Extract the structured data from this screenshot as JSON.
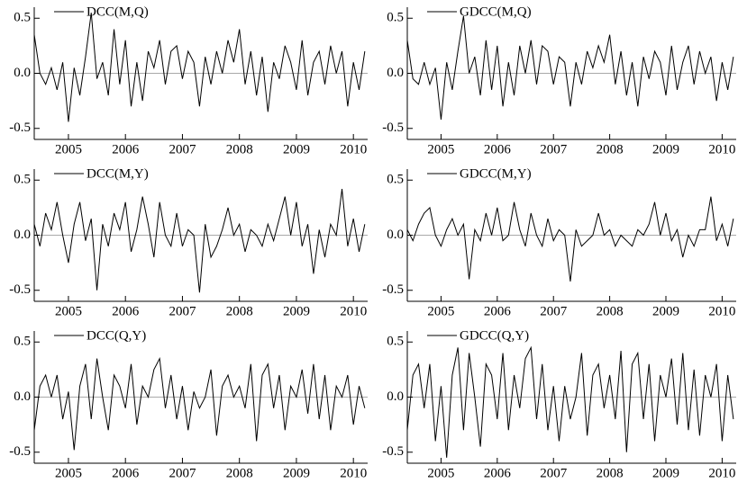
{
  "chart_data": [
    {
      "type": "line",
      "xlim": [
        2004.4,
        2010.25
      ],
      "ylim": [
        -0.6,
        0.6
      ],
      "xticks": [
        2005,
        2006,
        2007,
        2008,
        2009,
        2010
      ],
      "yticks": [
        0.5,
        {
          "value": 0,
          "label": "0.0"
        },
        -0.5
      ],
      "x": [
        2004.4,
        2004.5,
        2004.6,
        2004.7,
        2004.8,
        2004.9,
        2005,
        2005.1,
        2005.2,
        2005.3,
        2005.4,
        2005.5,
        2005.6,
        2005.7,
        2005.8,
        2005.9,
        2006,
        2006.1,
        2006.2,
        2006.3,
        2006.4,
        2006.5,
        2006.6,
        2006.7,
        2006.8,
        2006.9,
        2007,
        2007.1,
        2007.2,
        2007.3,
        2007.4,
        2007.5,
        2007.6,
        2007.7,
        2007.8,
        2007.9,
        2008,
        2008.1,
        2008.2,
        2008.3,
        2008.4,
        2008.5,
        2008.6,
        2008.7,
        2008.8,
        2008.9,
        2009,
        2009.1,
        2009.2,
        2009.3,
        2009.4,
        2009.5,
        2009.6,
        2009.7,
        2009.8,
        2009.9,
        2010,
        2010.1,
        2010.2
      ],
      "series": [
        {
          "name": "DCC(M,Q)",
          "color": "#000000",
          "values": [
            0.35,
            0.0,
            -0.1,
            0.05,
            -0.15,
            0.1,
            -0.44,
            0.05,
            -0.2,
            0.15,
            0.55,
            -0.05,
            0.1,
            -0.2,
            0.4,
            -0.1,
            0.3,
            -0.3,
            0.1,
            -0.25,
            0.2,
            0.05,
            0.3,
            -0.1,
            0.2,
            0.25,
            -0.05,
            0.2,
            0.1,
            -0.3,
            0.15,
            -0.1,
            0.2,
            0.0,
            0.3,
            0.1,
            0.4,
            -0.1,
            0.2,
            -0.2,
            0.15,
            -0.35,
            0.1,
            -0.05,
            0.25,
            0.1,
            -0.15,
            0.3,
            -0.2,
            0.1,
            0.2,
            -0.1,
            0.25,
            0.0,
            0.2,
            -0.3,
            0.1,
            -0.15,
            0.2
          ]
        }
      ]
    },
    {
      "type": "line",
      "xlim": [
        2004.4,
        2010.25
      ],
      "ylim": [
        -0.6,
        0.6
      ],
      "xticks": [
        2005,
        2006,
        2007,
        2008,
        2009,
        2010
      ],
      "yticks": [
        0.5,
        {
          "value": 0,
          "label": "0.0"
        },
        -0.5
      ],
      "x": [
        2004.4,
        2004.5,
        2004.6,
        2004.7,
        2004.8,
        2004.9,
        2005,
        2005.1,
        2005.2,
        2005.3,
        2005.4,
        2005.5,
        2005.6,
        2005.7,
        2005.8,
        2005.9,
        2006,
        2006.1,
        2006.2,
        2006.3,
        2006.4,
        2006.5,
        2006.6,
        2006.7,
        2006.8,
        2006.9,
        2007,
        2007.1,
        2007.2,
        2007.3,
        2007.4,
        2007.5,
        2007.6,
        2007.7,
        2007.8,
        2007.9,
        2008,
        2008.1,
        2008.2,
        2008.3,
        2008.4,
        2008.5,
        2008.6,
        2008.7,
        2008.8,
        2008.9,
        2009,
        2009.1,
        2009.2,
        2009.3,
        2009.4,
        2009.5,
        2009.6,
        2009.7,
        2009.8,
        2009.9,
        2010,
        2010.1,
        2010.2
      ],
      "series": [
        {
          "name": "GDCC(M,Q)",
          "color": "#000000",
          "values": [
            0.3,
            -0.05,
            -0.1,
            0.1,
            -0.1,
            0.05,
            -0.42,
            0.1,
            -0.15,
            0.2,
            0.52,
            0.0,
            0.15,
            -0.2,
            0.3,
            -0.15,
            0.25,
            -0.3,
            0.1,
            -0.2,
            0.25,
            0.0,
            0.3,
            -0.1,
            0.25,
            0.2,
            -0.1,
            0.15,
            0.1,
            -0.3,
            0.1,
            -0.1,
            0.2,
            0.05,
            0.25,
            0.1,
            0.35,
            -0.1,
            0.2,
            -0.2,
            0.1,
            -0.3,
            0.15,
            -0.05,
            0.2,
            0.1,
            -0.2,
            0.25,
            -0.15,
            0.1,
            0.25,
            -0.1,
            0.2,
            0.0,
            0.15,
            -0.25,
            0.1,
            -0.15,
            0.15
          ]
        }
      ]
    },
    {
      "type": "line",
      "xlim": [
        2004.4,
        2010.25
      ],
      "ylim": [
        -0.6,
        0.6
      ],
      "xticks": [
        2005,
        2006,
        2007,
        2008,
        2009,
        2010
      ],
      "yticks": [
        0.5,
        {
          "value": 0,
          "label": "0.0"
        },
        -0.5
      ],
      "x": [
        2004.4,
        2004.5,
        2004.6,
        2004.7,
        2004.8,
        2004.9,
        2005,
        2005.1,
        2005.2,
        2005.3,
        2005.4,
        2005.5,
        2005.6,
        2005.7,
        2005.8,
        2005.9,
        2006,
        2006.1,
        2006.2,
        2006.3,
        2006.4,
        2006.5,
        2006.6,
        2006.7,
        2006.8,
        2006.9,
        2007,
        2007.1,
        2007.2,
        2007.3,
        2007.4,
        2007.5,
        2007.6,
        2007.7,
        2007.8,
        2007.9,
        2008,
        2008.1,
        2008.2,
        2008.3,
        2008.4,
        2008.5,
        2008.6,
        2008.7,
        2008.8,
        2008.9,
        2009,
        2009.1,
        2009.2,
        2009.3,
        2009.4,
        2009.5,
        2009.6,
        2009.7,
        2009.8,
        2009.9,
        2010,
        2010.1,
        2010.2
      ],
      "series": [
        {
          "name": "DCC(M,Y)",
          "color": "#000000",
          "values": [
            0.1,
            -0.1,
            0.2,
            0.05,
            0.3,
            0.0,
            -0.25,
            0.1,
            0.3,
            -0.05,
            0.15,
            -0.5,
            0.1,
            -0.1,
            0.2,
            0.05,
            0.3,
            -0.15,
            0.05,
            0.35,
            0.1,
            -0.2,
            0.3,
            0.0,
            -0.1,
            0.2,
            -0.1,
            0.05,
            0.0,
            -0.52,
            0.1,
            -0.2,
            -0.1,
            0.05,
            0.25,
            0.0,
            0.1,
            -0.15,
            0.05,
            0.0,
            -0.1,
            0.1,
            -0.05,
            0.15,
            0.35,
            0.0,
            0.3,
            -0.1,
            0.1,
            -0.35,
            0.05,
            -0.2,
            0.1,
            0.0,
            0.42,
            -0.1,
            0.15,
            -0.15,
            0.1
          ]
        }
      ]
    },
    {
      "type": "line",
      "xlim": [
        2004.4,
        2010.25
      ],
      "ylim": [
        -0.6,
        0.6
      ],
      "xticks": [
        2005,
        2006,
        2007,
        2008,
        2009,
        2010
      ],
      "yticks": [
        0.5,
        {
          "value": 0,
          "label": "0.0"
        },
        -0.5
      ],
      "x": [
        2004.4,
        2004.5,
        2004.6,
        2004.7,
        2004.8,
        2004.9,
        2005,
        2005.1,
        2005.2,
        2005.3,
        2005.4,
        2005.5,
        2005.6,
        2005.7,
        2005.8,
        2005.9,
        2006,
        2006.1,
        2006.2,
        2006.3,
        2006.4,
        2006.5,
        2006.6,
        2006.7,
        2006.8,
        2006.9,
        2007,
        2007.1,
        2007.2,
        2007.3,
        2007.4,
        2007.5,
        2007.6,
        2007.7,
        2007.8,
        2007.9,
        2008,
        2008.1,
        2008.2,
        2008.3,
        2008.4,
        2008.5,
        2008.6,
        2008.7,
        2008.8,
        2008.9,
        2009,
        2009.1,
        2009.2,
        2009.3,
        2009.4,
        2009.5,
        2009.6,
        2009.7,
        2009.8,
        2009.9,
        2010,
        2010.1,
        2010.2
      ],
      "series": [
        {
          "name": "GDCC(M,Y)",
          "color": "#000000",
          "values": [
            0.05,
            -0.05,
            0.1,
            0.2,
            0.25,
            0.0,
            -0.1,
            0.05,
            0.15,
            0.0,
            0.1,
            -0.4,
            0.05,
            -0.05,
            0.2,
            0.0,
            0.25,
            -0.05,
            0.0,
            0.3,
            0.05,
            -0.1,
            0.2,
            0.0,
            -0.1,
            0.15,
            -0.05,
            0.05,
            0.0,
            -0.42,
            0.05,
            -0.1,
            -0.05,
            0.0,
            0.2,
            0.0,
            0.05,
            -0.1,
            0.0,
            -0.05,
            -0.1,
            0.05,
            0.0,
            0.1,
            0.3,
            0.0,
            0.2,
            -0.05,
            0.05,
            -0.2,
            0.0,
            -0.1,
            0.05,
            0.05,
            0.35,
            -0.05,
            0.1,
            -0.1,
            0.15
          ]
        }
      ]
    },
    {
      "type": "line",
      "xlim": [
        2004.4,
        2010.25
      ],
      "ylim": [
        -0.6,
        0.6
      ],
      "xticks": [
        2005,
        2006,
        2007,
        2008,
        2009,
        2010
      ],
      "yticks": [
        0.5,
        {
          "value": 0,
          "label": "0.0"
        },
        -0.5
      ],
      "x": [
        2004.4,
        2004.5,
        2004.6,
        2004.7,
        2004.8,
        2004.9,
        2005,
        2005.1,
        2005.2,
        2005.3,
        2005.4,
        2005.5,
        2005.6,
        2005.7,
        2005.8,
        2005.9,
        2006,
        2006.1,
        2006.2,
        2006.3,
        2006.4,
        2006.5,
        2006.6,
        2006.7,
        2006.8,
        2006.9,
        2007,
        2007.1,
        2007.2,
        2007.3,
        2007.4,
        2007.5,
        2007.6,
        2007.7,
        2007.8,
        2007.9,
        2008,
        2008.1,
        2008.2,
        2008.3,
        2008.4,
        2008.5,
        2008.6,
        2008.7,
        2008.8,
        2008.9,
        2009,
        2009.1,
        2009.2,
        2009.3,
        2009.4,
        2009.5,
        2009.6,
        2009.7,
        2009.8,
        2009.9,
        2010,
        2010.1,
        2010.2
      ],
      "series": [
        {
          "name": "DCC(Q,Y)",
          "color": "#000000",
          "values": [
            -0.3,
            0.1,
            0.2,
            0.0,
            0.2,
            -0.2,
            0.05,
            -0.48,
            0.1,
            0.3,
            -0.2,
            0.35,
            0.0,
            -0.3,
            0.2,
            0.1,
            -0.1,
            0.3,
            -0.25,
            0.1,
            0.0,
            0.25,
            0.35,
            -0.1,
            0.2,
            -0.2,
            0.1,
            -0.3,
            0.05,
            -0.1,
            0.0,
            0.25,
            -0.35,
            0.1,
            0.2,
            0.0,
            0.1,
            -0.1,
            0.3,
            -0.4,
            0.2,
            0.3,
            -0.1,
            0.2,
            -0.3,
            0.1,
            0.0,
            0.25,
            -0.15,
            0.3,
            -0.2,
            0.2,
            -0.3,
            0.1,
            0.0,
            0.2,
            -0.25,
            0.1,
            -0.1
          ]
        }
      ]
    },
    {
      "type": "line",
      "xlim": [
        2004.4,
        2010.25
      ],
      "ylim": [
        -0.6,
        0.6
      ],
      "xticks": [
        2005,
        2006,
        2007,
        2008,
        2009,
        2010
      ],
      "yticks": [
        0.5,
        {
          "value": 0,
          "label": "0.0"
        },
        -0.5
      ],
      "x": [
        2004.4,
        2004.5,
        2004.6,
        2004.7,
        2004.8,
        2004.9,
        2005,
        2005.1,
        2005.2,
        2005.3,
        2005.4,
        2005.5,
        2005.6,
        2005.7,
        2005.8,
        2005.9,
        2006,
        2006.1,
        2006.2,
        2006.3,
        2006.4,
        2006.5,
        2006.6,
        2006.7,
        2006.8,
        2006.9,
        2007,
        2007.1,
        2007.2,
        2007.3,
        2007.4,
        2007.5,
        2007.6,
        2007.7,
        2007.8,
        2007.9,
        2008,
        2008.1,
        2008.2,
        2008.3,
        2008.4,
        2008.5,
        2008.6,
        2008.7,
        2008.8,
        2008.9,
        2009,
        2009.1,
        2009.2,
        2009.3,
        2009.4,
        2009.5,
        2009.6,
        2009.7,
        2009.8,
        2009.9,
        2010,
        2010.1,
        2010.2
      ],
      "series": [
        {
          "name": "GDCC(Q,Y)",
          "color": "#000000",
          "values": [
            -0.3,
            0.2,
            0.3,
            -0.1,
            0.3,
            -0.4,
            0.1,
            -0.55,
            0.2,
            0.45,
            -0.3,
            0.4,
            0.0,
            -0.45,
            0.3,
            0.2,
            -0.2,
            0.4,
            -0.3,
            0.2,
            -0.1,
            0.35,
            0.45,
            -0.2,
            0.3,
            -0.3,
            0.1,
            -0.4,
            0.1,
            -0.2,
            0.0,
            0.4,
            -0.35,
            0.2,
            0.3,
            -0.1,
            0.2,
            -0.2,
            0.42,
            -0.5,
            0.3,
            0.4,
            -0.2,
            0.3,
            -0.4,
            0.2,
            0.0,
            0.35,
            -0.25,
            0.4,
            -0.3,
            0.25,
            -0.35,
            0.2,
            0.0,
            0.3,
            -0.4,
            0.2,
            -0.2
          ]
        }
      ]
    }
  ]
}
